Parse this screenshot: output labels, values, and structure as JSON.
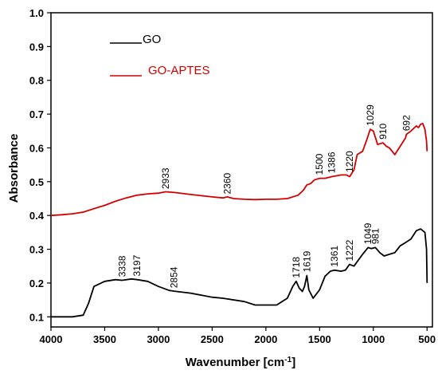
{
  "chart_data": {
    "type": "line",
    "xlabel": "Wavenumber [cm",
    "xlabel_sup": "-1",
    "xlabel_close": "]",
    "ylabel": "Absorbance",
    "xlim": [
      4000,
      450
    ],
    "x_reversed": true,
    "ylim": [
      0.07,
      1.0
    ],
    "x_ticks": [
      "4000",
      "3500",
      "3000",
      "2500",
      "2000",
      "1500",
      "1000",
      "500"
    ],
    "y_ticks": [
      "0.1",
      "0.2",
      "0.3",
      "0.4",
      "0.5",
      "0.6",
      "0.7",
      "0.8",
      "0.9",
      "1.0"
    ],
    "legend_placement": "top-left",
    "series": [
      {
        "name": "GO",
        "color": "#000000",
        "x": [
          4000,
          3800,
          3700,
          3650,
          3600,
          3500,
          3400,
          3338,
          3250,
          3197,
          3100,
          3000,
          2900,
          2854,
          2700,
          2500,
          2400,
          2200,
          2100,
          2000,
          1900,
          1800,
          1750,
          1718,
          1690,
          1660,
          1640,
          1619,
          1600,
          1560,
          1500,
          1450,
          1400,
          1361,
          1300,
          1260,
          1222,
          1180,
          1100,
          1049,
          1020,
          981,
          940,
          900,
          850,
          800,
          750,
          700,
          650,
          600,
          560,
          540,
          520,
          505,
          500
        ],
        "y": [
          0.1,
          0.1,
          0.105,
          0.14,
          0.19,
          0.205,
          0.21,
          0.208,
          0.212,
          0.21,
          0.205,
          0.19,
          0.178,
          0.176,
          0.17,
          0.158,
          0.155,
          0.145,
          0.135,
          0.135,
          0.135,
          0.155,
          0.19,
          0.205,
          0.185,
          0.175,
          0.19,
          0.222,
          0.18,
          0.155,
          0.18,
          0.22,
          0.235,
          0.238,
          0.235,
          0.238,
          0.255,
          0.25,
          0.285,
          0.305,
          0.302,
          0.305,
          0.29,
          0.28,
          0.285,
          0.29,
          0.31,
          0.32,
          0.33,
          0.355,
          0.36,
          0.355,
          0.35,
          0.3,
          0.2
        ]
      },
      {
        "name": "GO-APTES",
        "color": "#d40000",
        "x": [
          4000,
          3900,
          3800,
          3700,
          3600,
          3500,
          3400,
          3300,
          3200,
          3100,
          3000,
          2933,
          2850,
          2700,
          2500,
          2400,
          2360,
          2300,
          2200,
          2100,
          2000,
          1900,
          1800,
          1700,
          1650,
          1620,
          1580,
          1550,
          1500,
          1450,
          1386,
          1300,
          1250,
          1220,
          1180,
          1150,
          1100,
          1060,
          1029,
          1000,
          960,
          910,
          880,
          850,
          800,
          760,
          700,
          692,
          650,
          600,
          580,
          560,
          540,
          520,
          505,
          500
        ],
        "y": [
          0.4,
          0.402,
          0.405,
          0.41,
          0.42,
          0.43,
          0.442,
          0.452,
          0.46,
          0.464,
          0.466,
          0.47,
          0.468,
          0.462,
          0.455,
          0.452,
          0.455,
          0.45,
          0.448,
          0.447,
          0.448,
          0.448,
          0.45,
          0.46,
          0.475,
          0.49,
          0.495,
          0.505,
          0.51,
          0.51,
          0.515,
          0.52,
          0.52,
          0.515,
          0.535,
          0.58,
          0.59,
          0.625,
          0.655,
          0.65,
          0.61,
          0.615,
          0.605,
          0.6,
          0.58,
          0.6,
          0.63,
          0.64,
          0.65,
          0.665,
          0.66,
          0.67,
          0.672,
          0.655,
          0.62,
          0.59
        ]
      }
    ],
    "annotations": [
      {
        "text": "3338",
        "x": 3338,
        "y": 0.218,
        "series": "GO"
      },
      {
        "text": "3197",
        "x": 3197,
        "y": 0.22,
        "series": "GO"
      },
      {
        "text": "2854",
        "x": 2854,
        "y": 0.185,
        "series": "GO"
      },
      {
        "text": "1718",
        "x": 1718,
        "y": 0.215,
        "series": "GO"
      },
      {
        "text": "1619",
        "x": 1619,
        "y": 0.232,
        "series": "GO"
      },
      {
        "text": "1361",
        "x": 1361,
        "y": 0.248,
        "series": "GO"
      },
      {
        "text": "1222",
        "x": 1222,
        "y": 0.265,
        "series": "GO"
      },
      {
        "text": "1049",
        "x": 1049,
        "y": 0.315,
        "series": "GO"
      },
      {
        "text": "981",
        "x": 981,
        "y": 0.315,
        "series": "GO"
      },
      {
        "text": "2933",
        "x": 2933,
        "y": 0.478,
        "series": "GO-APTES"
      },
      {
        "text": "2360",
        "x": 2360,
        "y": 0.463,
        "series": "GO-APTES"
      },
      {
        "text": "1500",
        "x": 1500,
        "y": 0.52,
        "series": "GO-APTES"
      },
      {
        "text": "1386",
        "x": 1386,
        "y": 0.525,
        "series": "GO-APTES"
      },
      {
        "text": "1220",
        "x": 1220,
        "y": 0.528,
        "series": "GO-APTES"
      },
      {
        "text": "1029",
        "x": 1029,
        "y": 0.665,
        "series": "GO-APTES"
      },
      {
        "text": "910",
        "x": 910,
        "y": 0.625,
        "series": "GO-APTES"
      },
      {
        "text": "692",
        "x": 692,
        "y": 0.65,
        "series": "GO-APTES"
      }
    ]
  }
}
